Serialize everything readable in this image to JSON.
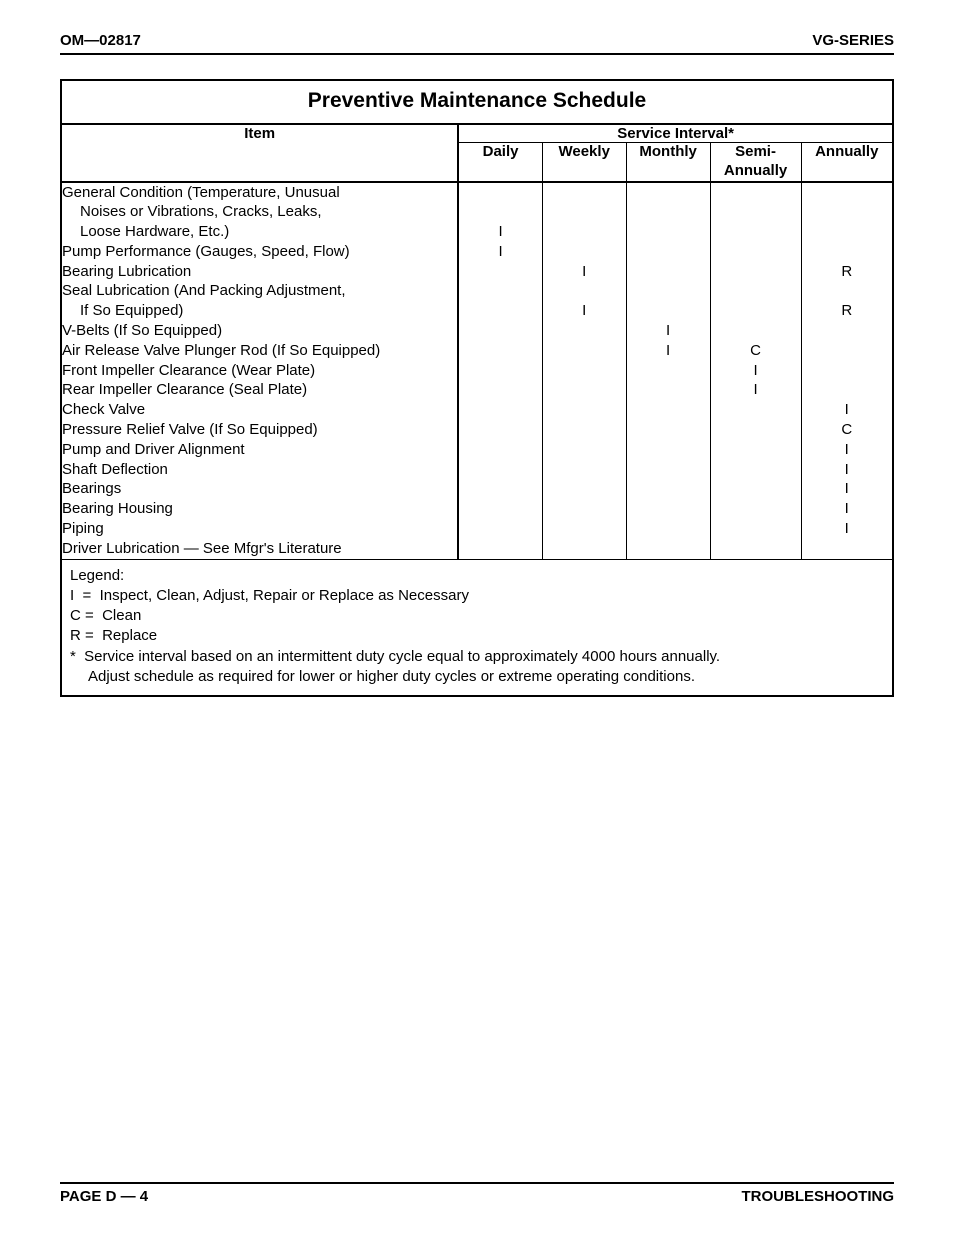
{
  "header": {
    "left": "OM—02817",
    "right": "VG-SERIES"
  },
  "footer": {
    "left": "PAGE D — 4",
    "right": "TROUBLESHOOTING"
  },
  "title": "Preventive Maintenance Schedule",
  "columns": {
    "item": "Item",
    "service_interval": "Service Interval*",
    "daily": "Daily",
    "weekly": "Weekly",
    "monthly": "Monthly",
    "semi": "Semi-\nAnnually",
    "annually": "Annually"
  },
  "rows": [
    {
      "label": "General Condition (Temperature, Unusual",
      "d": "",
      "w": "",
      "m": "",
      "s": "",
      "a": ""
    },
    {
      "label": "Noises or Vibrations, Cracks, Leaks,",
      "indent": true,
      "d": "",
      "w": "",
      "m": "",
      "s": "",
      "a": ""
    },
    {
      "label": "Loose Hardware, Etc.)",
      "indent": true,
      "d": "I",
      "w": "",
      "m": "",
      "s": "",
      "a": ""
    },
    {
      "label": "Pump Performance (Gauges, Speed, Flow)",
      "d": "I",
      "w": "",
      "m": "",
      "s": "",
      "a": ""
    },
    {
      "label": "Bearing Lubrication",
      "d": "",
      "w": "I",
      "m": "",
      "s": "",
      "a": "R"
    },
    {
      "label": "Seal Lubrication (And Packing Adjustment,",
      "d": "",
      "w": "",
      "m": "",
      "s": "",
      "a": ""
    },
    {
      "label": "If So Equipped)",
      "indent": true,
      "d": "",
      "w": "I",
      "m": "",
      "s": "",
      "a": "R"
    },
    {
      "label": "V-Belts (If So Equipped)",
      "d": "",
      "w": "",
      "m": "I",
      "s": "",
      "a": ""
    },
    {
      "label": "Air Release Valve Plunger Rod (If So Equipped)",
      "d": "",
      "w": "",
      "m": "I",
      "s": "C",
      "a": ""
    },
    {
      "label": "Front Impeller Clearance (Wear Plate)",
      "d": "",
      "w": "",
      "m": "",
      "s": "I",
      "a": ""
    },
    {
      "label": "Rear Impeller Clearance (Seal Plate)",
      "d": "",
      "w": "",
      "m": "",
      "s": "I",
      "a": ""
    },
    {
      "label": "Check Valve",
      "d": "",
      "w": "",
      "m": "",
      "s": "",
      "a": "I"
    },
    {
      "label": "Pressure Relief Valve (If So Equipped)",
      "d": "",
      "w": "",
      "m": "",
      "s": "",
      "a": "C"
    },
    {
      "label": "Pump and Driver Alignment",
      "d": "",
      "w": "",
      "m": "",
      "s": "",
      "a": "I"
    },
    {
      "label": "Shaft Deflection",
      "d": "",
      "w": "",
      "m": "",
      "s": "",
      "a": "I"
    },
    {
      "label": "Bearings",
      "d": "",
      "w": "",
      "m": "",
      "s": "",
      "a": "I"
    },
    {
      "label": "Bearing Housing",
      "d": "",
      "w": "",
      "m": "",
      "s": "",
      "a": "I"
    },
    {
      "label": "Piping",
      "d": "",
      "w": "",
      "m": "",
      "s": "",
      "a": "I"
    },
    {
      "label": "Driver Lubrication — See Mfgr's Literature",
      "d": "",
      "w": "",
      "m": "",
      "s": "",
      "a": ""
    }
  ],
  "legend": {
    "title": "Legend:",
    "l1": "I  =  Inspect, Clean, Adjust, Repair or Replace as Necessary",
    "l2": "C =  Clean",
    "l3": "R =  Replace",
    "l4": "*  Service interval based on an intermittent duty cycle equal to approximately 4000 hours annually.",
    "l5": "Adjust schedule as required for lower or higher duty cycles or extreme operating conditions."
  },
  "style": {
    "page_bg": "#ffffff",
    "text_color": "#000000",
    "border_color": "#000000",
    "title_fontsize": 21,
    "body_fontsize": 15,
    "header_fontsize": 15
  }
}
